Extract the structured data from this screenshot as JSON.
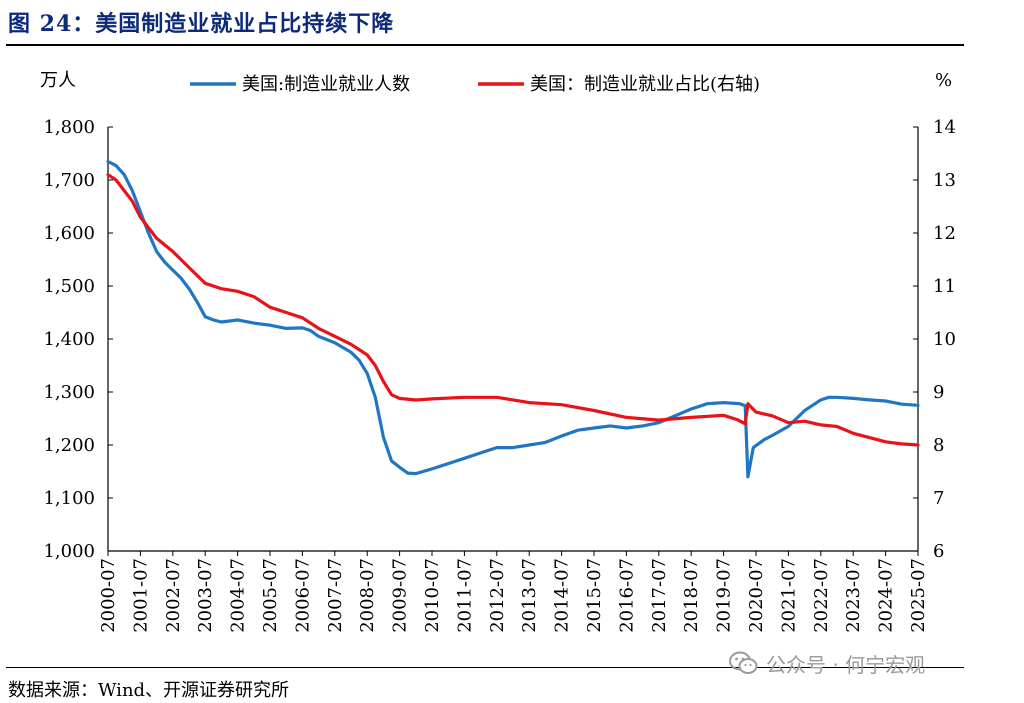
{
  "title": "图 24：美国制造业就业占比持续下降",
  "source": "数据来源：Wind、开源证券研究所",
  "watermark": "公众号 · 何宁宏观",
  "chart_data": {
    "type": "line",
    "left_axis_unit": "万人",
    "right_axis_unit": "%",
    "ylim_left": [
      1000,
      1800
    ],
    "ylim_right": [
      6,
      14
    ],
    "yticks_left": [
      "1,000",
      "1,100",
      "1,200",
      "1,300",
      "1,400",
      "1,500",
      "1,600",
      "1,700",
      "1,800"
    ],
    "yticks_right": [
      "6",
      "7",
      "8",
      "9",
      "10",
      "11",
      "12",
      "13",
      "14"
    ],
    "xticks": [
      "2000-07",
      "2001-07",
      "2002-07",
      "2003-07",
      "2004-07",
      "2005-07",
      "2006-07",
      "2007-07",
      "2008-07",
      "2009-07",
      "2010-07",
      "2011-07",
      "2012-07",
      "2013-07",
      "2014-07",
      "2015-07",
      "2016-07",
      "2017-07",
      "2018-07",
      "2019-07",
      "2020-07",
      "2021-07",
      "2022-07",
      "2023-07",
      "2024-07",
      "2025-07"
    ],
    "xlim": [
      "2000-07",
      "2025-07"
    ],
    "colors": {
      "employment": "#1f77c4",
      "share": "#e8121b"
    },
    "series": [
      {
        "name": "美国:制造业就业人数",
        "axis": "left",
        "points": [
          [
            "2000-07",
            1735
          ],
          [
            "2000-10",
            1727
          ],
          [
            "2001-01",
            1710
          ],
          [
            "2001-04",
            1680
          ],
          [
            "2001-07",
            1640
          ],
          [
            "2001-10",
            1600
          ],
          [
            "2002-01",
            1565
          ],
          [
            "2002-04",
            1545
          ],
          [
            "2002-07",
            1530
          ],
          [
            "2002-10",
            1515
          ],
          [
            "2003-01",
            1495
          ],
          [
            "2003-04",
            1470
          ],
          [
            "2003-07",
            1442
          ],
          [
            "2003-10",
            1436
          ],
          [
            "2004-01",
            1432
          ],
          [
            "2004-04",
            1434
          ],
          [
            "2004-07",
            1436
          ],
          [
            "2005-01",
            1430
          ],
          [
            "2005-07",
            1426
          ],
          [
            "2006-01",
            1420
          ],
          [
            "2006-07",
            1421
          ],
          [
            "2006-10",
            1416
          ],
          [
            "2007-01",
            1405
          ],
          [
            "2007-07",
            1393
          ],
          [
            "2008-01",
            1375
          ],
          [
            "2008-04",
            1360
          ],
          [
            "2008-07",
            1335
          ],
          [
            "2008-10",
            1290
          ],
          [
            "2009-01",
            1215
          ],
          [
            "2009-04",
            1170
          ],
          [
            "2009-07",
            1158
          ],
          [
            "2009-10",
            1147
          ],
          [
            "2010-01",
            1146
          ],
          [
            "2010-07",
            1155
          ],
          [
            "2011-01",
            1165
          ],
          [
            "2011-07",
            1175
          ],
          [
            "2012-01",
            1185
          ],
          [
            "2012-07",
            1195
          ],
          [
            "2013-01",
            1195
          ],
          [
            "2013-07",
            1200
          ],
          [
            "2014-01",
            1205
          ],
          [
            "2014-07",
            1217
          ],
          [
            "2015-01",
            1228
          ],
          [
            "2015-07",
            1232
          ],
          [
            "2016-01",
            1236
          ],
          [
            "2016-07",
            1232
          ],
          [
            "2017-01",
            1236
          ],
          [
            "2017-07",
            1242
          ],
          [
            "2018-01",
            1255
          ],
          [
            "2018-07",
            1268
          ],
          [
            "2019-01",
            1278
          ],
          [
            "2019-07",
            1280
          ],
          [
            "2020-01",
            1278
          ],
          [
            "2020-03",
            1274
          ],
          [
            "2020-04",
            1140
          ],
          [
            "2020-06",
            1195
          ],
          [
            "2020-10",
            1210
          ],
          [
            "2021-01",
            1218
          ],
          [
            "2021-07",
            1235
          ],
          [
            "2022-01",
            1265
          ],
          [
            "2022-07",
            1285
          ],
          [
            "2022-10",
            1290
          ],
          [
            "2023-01",
            1290
          ],
          [
            "2023-07",
            1288
          ],
          [
            "2024-01",
            1285
          ],
          [
            "2024-07",
            1283
          ],
          [
            "2025-01",
            1277
          ],
          [
            "2025-07",
            1275
          ]
        ]
      },
      {
        "name": "美国：制造业就业占比(右轴)",
        "axis": "right",
        "points": [
          [
            "2000-07",
            13.1
          ],
          [
            "2000-10",
            13.0
          ],
          [
            "2001-01",
            12.8
          ],
          [
            "2001-04",
            12.6
          ],
          [
            "2001-07",
            12.3
          ],
          [
            "2002-01",
            11.9
          ],
          [
            "2002-07",
            11.65
          ],
          [
            "2003-01",
            11.35
          ],
          [
            "2003-07",
            11.05
          ],
          [
            "2004-01",
            10.95
          ],
          [
            "2004-07",
            10.9
          ],
          [
            "2005-01",
            10.8
          ],
          [
            "2005-07",
            10.6
          ],
          [
            "2006-01",
            10.5
          ],
          [
            "2006-07",
            10.4
          ],
          [
            "2007-01",
            10.2
          ],
          [
            "2007-07",
            10.05
          ],
          [
            "2008-01",
            9.9
          ],
          [
            "2008-07",
            9.7
          ],
          [
            "2008-10",
            9.5
          ],
          [
            "2009-01",
            9.2
          ],
          [
            "2009-04",
            8.95
          ],
          [
            "2009-07",
            8.88
          ],
          [
            "2010-01",
            8.85
          ],
          [
            "2010-07",
            8.87
          ],
          [
            "2011-07",
            8.9
          ],
          [
            "2012-07",
            8.9
          ],
          [
            "2013-07",
            8.8
          ],
          [
            "2014-07",
            8.76
          ],
          [
            "2015-07",
            8.65
          ],
          [
            "2016-07",
            8.52
          ],
          [
            "2017-07",
            8.47
          ],
          [
            "2018-07",
            8.52
          ],
          [
            "2019-07",
            8.56
          ],
          [
            "2019-12",
            8.48
          ],
          [
            "2020-03",
            8.4
          ],
          [
            "2020-04",
            8.78
          ],
          [
            "2020-07",
            8.62
          ],
          [
            "2021-01",
            8.55
          ],
          [
            "2021-07",
            8.42
          ],
          [
            "2022-01",
            8.45
          ],
          [
            "2022-07",
            8.38
          ],
          [
            "2023-01",
            8.35
          ],
          [
            "2023-07",
            8.22
          ],
          [
            "2024-01",
            8.14
          ],
          [
            "2024-07",
            8.06
          ],
          [
            "2025-01",
            8.02
          ],
          [
            "2025-07",
            8.0
          ]
        ]
      }
    ]
  }
}
